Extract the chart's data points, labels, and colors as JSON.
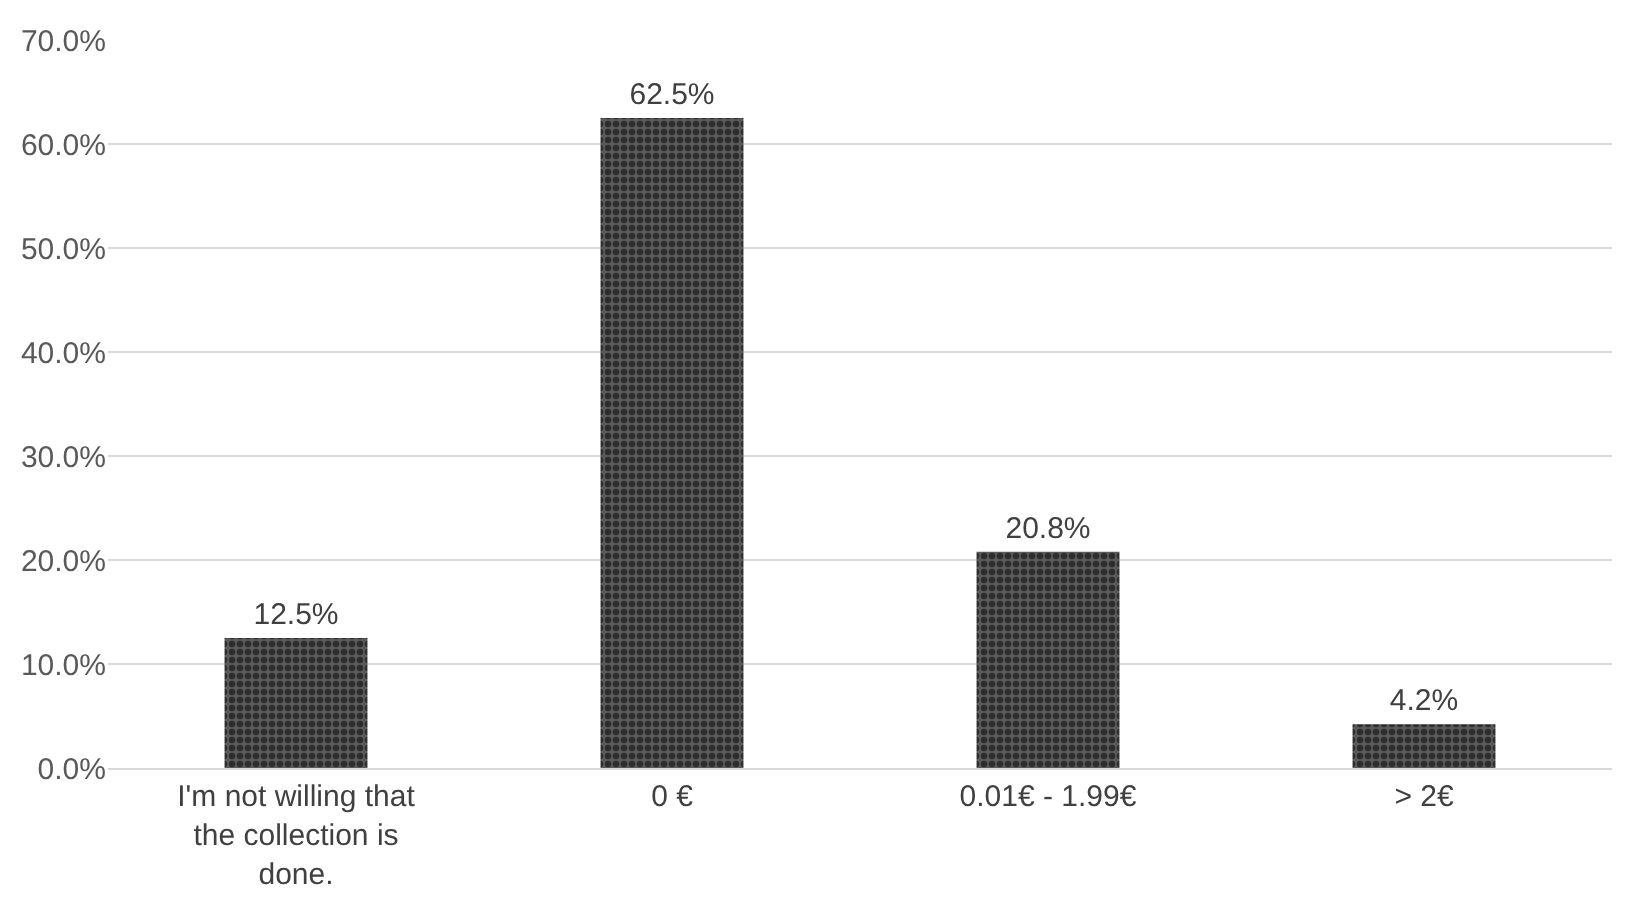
{
  "chart_data": {
    "type": "bar",
    "categories": [
      "I'm not willing that the collection is done.",
      "0 €",
      "0.01€ - 1.99€",
      "> 2€"
    ],
    "values": [
      12.5,
      62.5,
      20.8,
      4.2
    ],
    "value_labels": [
      "12.5%",
      "62.5%",
      "20.8%",
      "4.2%"
    ],
    "color": "#5a5a5a",
    "ylim": [
      0,
      70
    ],
    "yticks": [
      {
        "value": 0,
        "label": "0.0%"
      },
      {
        "value": 10,
        "label": "10.0%"
      },
      {
        "value": 20,
        "label": "20.0%"
      },
      {
        "value": 30,
        "label": "30.0%"
      },
      {
        "value": 40,
        "label": "40.0%"
      },
      {
        "value": 50,
        "label": "50.0%"
      },
      {
        "value": 60,
        "label": "60.0%"
      },
      {
        "value": 70,
        "label": "70.0%"
      }
    ],
    "grid": "y",
    "legend": false
  }
}
